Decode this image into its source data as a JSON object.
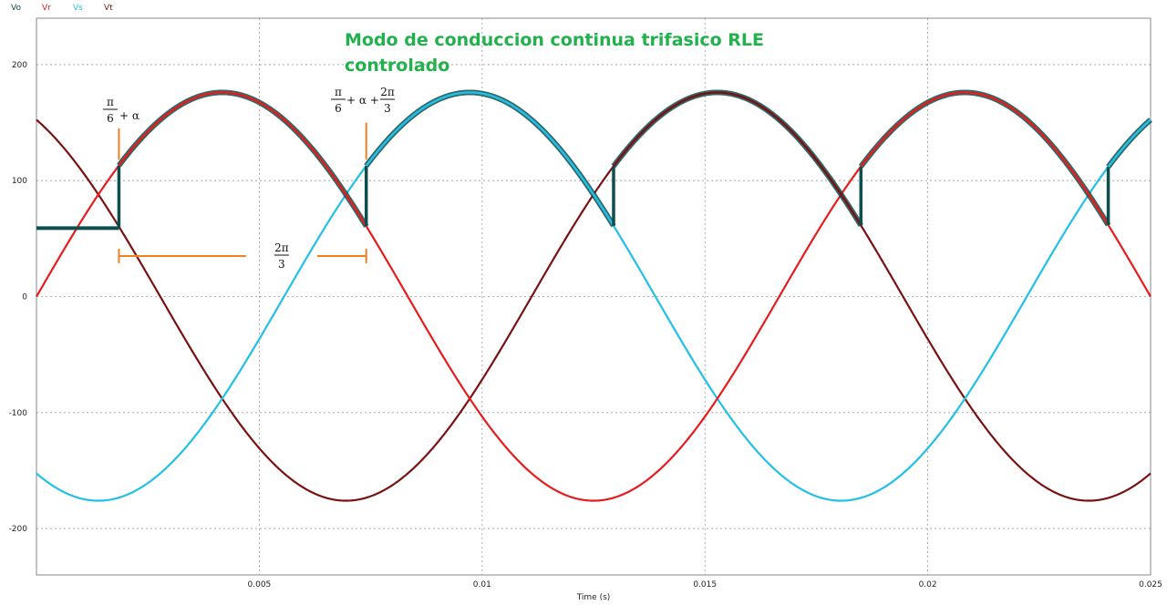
{
  "chart_data": {
    "type": "line",
    "title": "Modo de conduccion continua trifasico RLE",
    "title_line2": "controlado",
    "title_color": "#22b14c",
    "xlabel": "Time (s)",
    "ylabel": "",
    "xlim": [
      0,
      0.025
    ],
    "ylim": [
      -240,
      240
    ],
    "grid": true,
    "legend_position": "top-left",
    "x_ticks": [
      "0.005",
      "0.01",
      "0.015",
      "0.02",
      "0.025"
    ],
    "x_tick_values": [
      0.005,
      0.01,
      0.015,
      0.02,
      0.025
    ],
    "y_ticks": [
      "200",
      "100",
      "0",
      "-100",
      "-200"
    ],
    "y_tick_values": [
      200,
      100,
      0,
      -100,
      -200
    ],
    "series": [
      {
        "name": "Vo",
        "color": "#0d4f4f",
        "kind": "rectifier_output"
      },
      {
        "name": "Vr",
        "color": "#e81c1c",
        "amplitude": 176,
        "freq_hz": 60,
        "phase_deg": 0
      },
      {
        "name": "Vs",
        "color": "#22c0e8",
        "amplitude": 176,
        "freq_hz": 60,
        "phase_deg": -120
      },
      {
        "name": "Vt",
        "color": "#7a1212",
        "amplitude": 176,
        "freq_hz": 60,
        "phase_deg": 120
      }
    ],
    "vo_initial_value": 59,
    "vo_firing_times": [
      0.00185,
      0.0074,
      0.01295,
      0.0185,
      0.02405
    ],
    "vo_conducting_phase": [
      "Vr",
      "Vs",
      "Vt",
      "Vr",
      "Vs"
    ],
    "annotations": {
      "first_firing": {
        "num": "π",
        "den": "6",
        "rest": "+ α"
      },
      "second_firing": {
        "num": "π",
        "den": "6",
        "mid": "+ α +",
        "num2": "2π",
        "den2": "3"
      },
      "interval": {
        "num": "2π",
        "den": "3"
      },
      "annotation_color": "#f08020"
    }
  }
}
